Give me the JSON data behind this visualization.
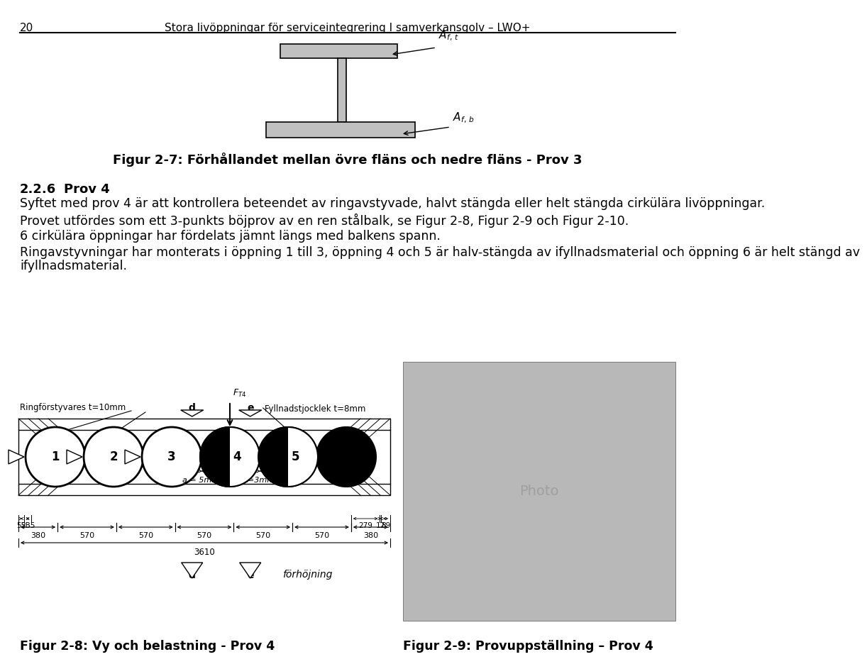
{
  "page_number": "20",
  "header_title": "Stora livöppningar för serviceintegrering I samverkansgolv – LWO+",
  "fig27_caption": "Figur 2-7: Förhållandet mellan övre fläns och nedre fläns - Prov 3",
  "section_number": "2.2.6",
  "section_title": "Prov 4",
  "paragraph1": "Syftet med prov 4 är att kontrollera beteendet av ringavstyvade, halvt stängda eller helt stängda cirkülära livöppningar.",
  "paragraph2": "Provet utfördes som ett 3-punkts böjprov av en ren stålbalk, se Figur 2-8, Figur 2-9 och Figur 2-10.",
  "paragraph3": "6 cirkülära öppningar har fördelats jämnt längs med balkens spann.",
  "paragraph4": "Ringavstyvningar har monterats i öppning 1 till 3, öppning 4 och 5 är halv-stängda av ifyllnadsmaterial och öppning 6 är helt stängd av ifyllnadsmaterial.",
  "fig28_caption": "Figur 2-8: Vy och belastning - Prov 4",
  "fig29_caption": "Figur 2-9: Provuppställning – Prov 4",
  "bg_color": "#ffffff",
  "text_color": "#000000"
}
